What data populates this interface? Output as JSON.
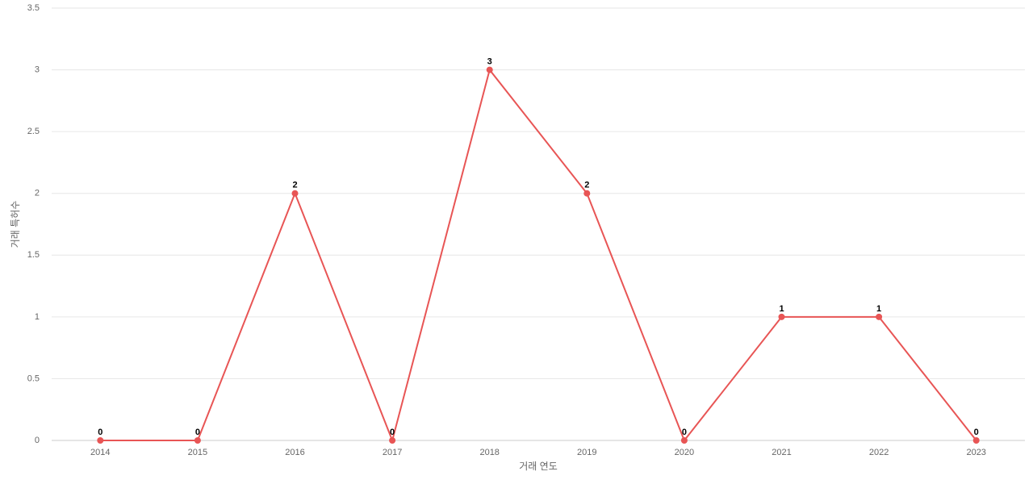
{
  "chart_data": {
    "type": "line",
    "x_label": "거래 연도",
    "y_label": "거래 특허수",
    "categories": [
      "2014",
      "2015",
      "2016",
      "2017",
      "2018",
      "2019",
      "2020",
      "2021",
      "2022",
      "2023"
    ],
    "series": [
      {
        "name": "거래 특허수",
        "color": "#e85555",
        "values": [
          0,
          0,
          2,
          0,
          3,
          2,
          0,
          1,
          1,
          0
        ]
      }
    ],
    "ylim": [
      0,
      3.5
    ],
    "yticks": [
      0,
      0.5,
      1,
      1.5,
      2,
      2.5,
      3,
      3.5
    ],
    "grid": true
  }
}
